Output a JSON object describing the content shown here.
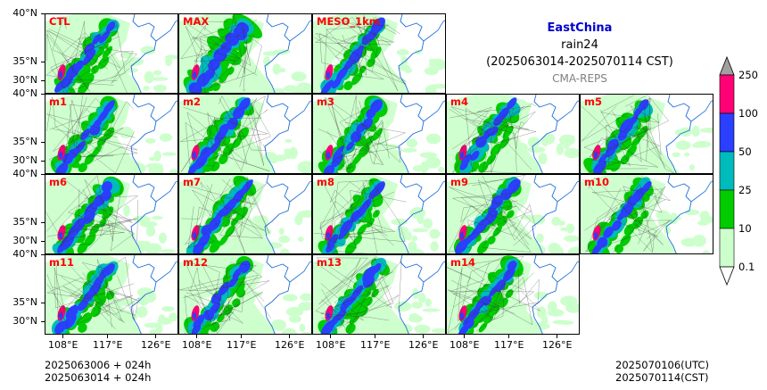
{
  "region": "EastChina",
  "variable": "rain24",
  "period": "(2025063014-2025070114 CST)",
  "source": "CMA-REPS",
  "panels": [
    "CTL",
    "MAX",
    "MESO_1km",
    "m1",
    "m2",
    "m3",
    "m4",
    "m5",
    "m6",
    "m7",
    "m8",
    "m9",
    "m10",
    "m11",
    "m12",
    "m13",
    "m14"
  ],
  "lat_labels": [
    "40°N",
    "35°N",
    "30°N"
  ],
  "lon_labels": [
    "108°E",
    "117°E",
    "126°E"
  ],
  "colorbar": {
    "levels": [
      "0.1",
      "10",
      "25",
      "50",
      "100",
      "250"
    ],
    "colors": [
      "#ccffcc",
      "#00cc00",
      "#00bbbb",
      "#2a3fff",
      "#ff0077",
      "#a0a0a0"
    ]
  },
  "footer_left": [
    "2025063006  +  024h",
    "2025063014  +  024h"
  ],
  "footer_right": [
    "2025070106(UTC)",
    "2025070114(CST)"
  ]
}
